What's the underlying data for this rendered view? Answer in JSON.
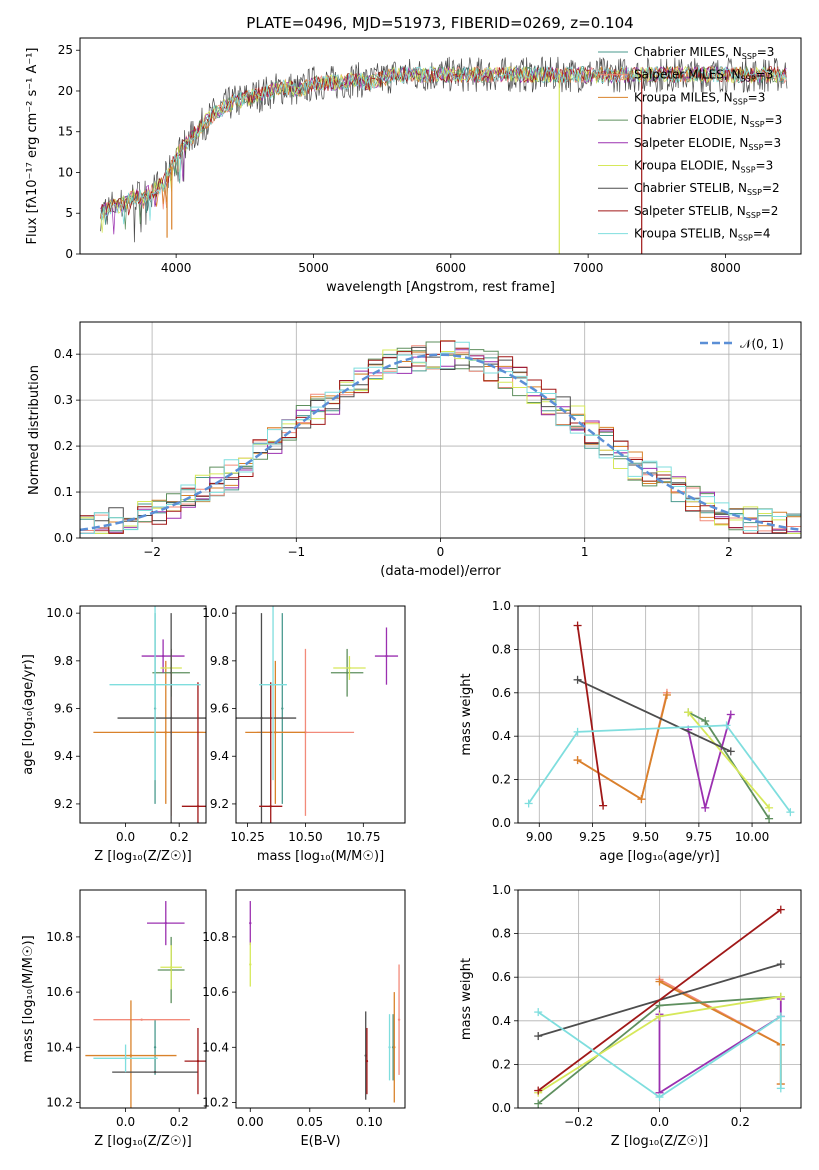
{
  "figure": {
    "title": "PLATE=0496, MJD=51973, FIBERID=0269, z=0.104"
  },
  "palette": {
    "Chabrier MILES": "#4a9a8e",
    "Salpeter MILES": "#f28a7a",
    "Kroupa MILES": "#d9822b",
    "Chabrier ELODIE": "#5e8f5e",
    "Salpeter ELODIE": "#9b30b0",
    "Kroupa ELODIE": "#d6e85a",
    "Chabrier STELIB": "#4d4d4d",
    "Salpeter STELIB": "#a01818",
    "Kroupa STELIB": "#7fdede"
  },
  "chart_data": [
    {
      "id": "spectrum",
      "type": "line",
      "title": "PLATE=0496, MJD=51973, FIBERID=0269, z=0.104",
      "xlabel": "wavelength [Angstrom, rest frame]",
      "ylabel": "Flux [fλ10⁻¹⁷ erg cm⁻² s⁻¹ A⁻¹]",
      "xlim": [
        3300,
        8550
      ],
      "ylim": [
        0,
        26.5
      ],
      "xticks": [
        "4000",
        "5000",
        "6000",
        "7000",
        "8000"
      ],
      "yticks": [
        "0",
        "5",
        "10",
        "15",
        "20",
        "25"
      ],
      "grid": false,
      "legend_position": "upper-right",
      "legend": [
        {
          "name": "Chabrier MILES",
          "sub": "SSP",
          "n": "3"
        },
        {
          "name": "Salpeter MILES",
          "sub": "SSP",
          "n": "3"
        },
        {
          "name": "Kroupa MILES",
          "sub": "SSP",
          "n": "3"
        },
        {
          "name": "Chabrier ELODIE",
          "sub": "SSP",
          "n": "3"
        },
        {
          "name": "Salpeter ELODIE",
          "sub": "SSP",
          "n": "3"
        },
        {
          "name": "Kroupa ELODIE",
          "sub": "SSP",
          "n": "3"
        },
        {
          "name": "Chabrier STELIB",
          "sub": "SSP",
          "n": "2"
        },
        {
          "name": "Salpeter STELIB",
          "sub": "SSP",
          "n": "2"
        },
        {
          "name": "Kroupa STELIB",
          "sub": "SSP",
          "n": "4"
        }
      ],
      "envelope": {
        "wavelength": [
          3450,
          3500,
          3550,
          3600,
          3650,
          3700,
          3750,
          3800,
          3850,
          3900,
          3950,
          4000,
          4050,
          4100,
          4150,
          4200,
          4300,
          4400,
          4500,
          4600,
          4700,
          4800,
          4900,
          5000,
          5100,
          5200,
          5300,
          5400,
          5500,
          5600,
          5700,
          5800,
          5900,
          6000,
          6100,
          6200,
          6300,
          6400,
          6500,
          6600,
          6700,
          6800,
          6900,
          7000,
          7100,
          7200,
          7300,
          7400,
          7500,
          7600,
          7700,
          7800,
          7900,
          8000,
          8100,
          8200,
          8300,
          8400,
          8500
        ],
        "flux": [
          5,
          5.5,
          6,
          6,
          6.5,
          7,
          7,
          7.5,
          8,
          8.5,
          10,
          12,
          13,
          14,
          15,
          16,
          17.5,
          18.5,
          19,
          19.5,
          20,
          20.5,
          20,
          21,
          21,
          21,
          21.5,
          21,
          21.5,
          22,
          22,
          22,
          22,
          22,
          22,
          22,
          22,
          22,
          22,
          22,
          22,
          22,
          22,
          22,
          22,
          22,
          22,
          22,
          22,
          22,
          22,
          22,
          22,
          22,
          22,
          22,
          22,
          22,
          22
        ]
      },
      "dips": [
        {
          "x": 3934,
          "to": 2
        },
        {
          "x": 3968,
          "to": 3
        },
        {
          "x": 6790,
          "to": 0
        },
        {
          "x": 7390,
          "to": 0
        }
      ]
    },
    {
      "id": "residual-histogram",
      "type": "histogram",
      "xlabel": "(data-model)/error",
      "ylabel": "Normed distribution",
      "xlim": [
        -2.5,
        2.5
      ],
      "ylim": [
        0,
        0.47
      ],
      "xticks": [
        "−2",
        "−1",
        "0",
        "1",
        "2"
      ],
      "yticks": [
        "0.0",
        "0.1",
        "0.2",
        "0.3",
        "0.4"
      ],
      "grid": true,
      "legend_position": "upper-right",
      "reference_curve": {
        "label": "𝒩(0, 1)",
        "mean": 0,
        "sigma": 1,
        "color": "#5b8fd6"
      },
      "bin_width": 0.1
    },
    {
      "id": "age-vs-Z",
      "type": "errorbar",
      "xlabel": "Z [log₁₀(Z/Z☉)]",
      "ylabel": "age  [log₁₀(age/yr)]",
      "xlim": [
        -0.17,
        0.3
      ],
      "ylim": [
        9.12,
        10.03
      ],
      "xticks": [
        "0.0",
        "0.2"
      ],
      "yticks": [
        "9.2",
        "9.4",
        "9.6",
        "9.8",
        "10.0"
      ],
      "points": [
        {
          "series": "Chabrier MILES",
          "x": 0.11,
          "y": 9.6,
          "xerr": 0,
          "yerr": 0.4
        },
        {
          "series": "Salpeter MILES",
          "x": 0.17,
          "y": 9.5,
          "xerr": 0.12,
          "yerr": 0.35
        },
        {
          "series": "Kroupa MILES",
          "x": 0.15,
          "y": 9.5,
          "xerr": 0.27,
          "yerr": 0.3
        },
        {
          "series": "Chabrier ELODIE",
          "x": 0.17,
          "y": 9.75,
          "xerr": 0.07,
          "yerr": 0.1
        },
        {
          "series": "Salpeter ELODIE",
          "x": 0.14,
          "y": 9.82,
          "xerr": 0.08,
          "yerr": 0.07
        },
        {
          "series": "Kroupa ELODIE",
          "x": 0.17,
          "y": 9.77,
          "xerr": 0.04,
          "yerr": 0.05
        },
        {
          "series": "Chabrier STELIB",
          "x": 0.17,
          "y": 9.56,
          "xerr": 0.2,
          "yerr": 0.44
        },
        {
          "series": "Salpeter STELIB",
          "x": 0.27,
          "y": 9.19,
          "xerr": 0.06,
          "yerr": 0.52
        },
        {
          "series": "Kroupa STELIB",
          "x": 0.11,
          "y": 9.7,
          "xerr": 0.17,
          "yerr": 0.4
        }
      ]
    },
    {
      "id": "age-vs-mass",
      "type": "errorbar",
      "xlabel": "mass [log₁₀(M/M☉)]",
      "ylabel": "",
      "xlim": [
        10.2,
        10.93
      ],
      "ylim": [
        9.12,
        10.03
      ],
      "xticks": [
        "10.25",
        "10.50",
        "10.75"
      ],
      "yticks": [
        "9.2",
        "9.4",
        "9.6",
        "9.8",
        "10.0"
      ],
      "points": [
        {
          "series": "Chabrier MILES",
          "x": 10.4,
          "y": 9.6,
          "xerr": 0,
          "yerr": 0.4
        },
        {
          "series": "Salpeter MILES",
          "x": 10.5,
          "y": 9.5,
          "xerr": 0.21,
          "yerr": 0.35
        },
        {
          "series": "Kroupa MILES",
          "x": 10.37,
          "y": 9.5,
          "xerr": 0.13,
          "yerr": 0.3
        },
        {
          "series": "Chabrier ELODIE",
          "x": 10.68,
          "y": 9.75,
          "xerr": 0.07,
          "yerr": 0.1
        },
        {
          "series": "Salpeter ELODIE",
          "x": 10.85,
          "y": 9.82,
          "xerr": 0.05,
          "yerr": 0.12
        },
        {
          "series": "Kroupa ELODIE",
          "x": 10.69,
          "y": 9.77,
          "xerr": 0.07,
          "yerr": 0.05
        },
        {
          "series": "Chabrier STELIB",
          "x": 10.31,
          "y": 9.56,
          "xerr": 0.15,
          "yerr": 0.44
        },
        {
          "series": "Salpeter STELIB",
          "x": 10.35,
          "y": 9.19,
          "xerr": 0.05,
          "yerr": 0.52
        },
        {
          "series": "Kroupa STELIB",
          "x": 10.36,
          "y": 9.7,
          "xerr": 0.06,
          "yerr": 0.4
        }
      ]
    },
    {
      "id": "weight-vs-age",
      "type": "line",
      "xlabel": "age  [log₁₀(age/yr)]",
      "ylabel": "mass weight",
      "xlim": [
        8.9,
        10.23
      ],
      "ylim": [
        0,
        1
      ],
      "xticks": [
        "9.00",
        "9.25",
        "9.50",
        "9.75",
        "10.00"
      ],
      "yticks": [
        "0.0",
        "0.2",
        "0.4",
        "0.6",
        "0.8",
        "1.0"
      ],
      "grid": true,
      "series": [
        {
          "name": "Salpeter MILES",
          "x": [
            9.18,
            9.48,
            9.6
          ],
          "y": [
            0.29,
            0.11,
            0.6
          ]
        },
        {
          "name": "Kroupa MILES",
          "x": [
            9.18,
            9.48,
            9.6
          ],
          "y": [
            0.29,
            0.11,
            0.59
          ]
        },
        {
          "name": "Chabrier ELODIE",
          "x": [
            9.7,
            9.78,
            10.08
          ],
          "y": [
            0.51,
            0.47,
            0.02
          ]
        },
        {
          "name": "Salpeter ELODIE",
          "x": [
            9.7,
            9.78,
            9.9
          ],
          "y": [
            0.43,
            0.07,
            0.5
          ]
        },
        {
          "name": "Kroupa ELODIE",
          "x": [
            9.7,
            10.08
          ],
          "y": [
            0.51,
            0.07
          ]
        },
        {
          "name": "Chabrier STELIB",
          "x": [
            9.18,
            9.9
          ],
          "y": [
            0.66,
            0.33
          ]
        },
        {
          "name": "Salpeter STELIB",
          "x": [
            9.18,
            9.3
          ],
          "y": [
            0.91,
            0.08
          ]
        },
        {
          "name": "Kroupa STELIB",
          "x": [
            8.95,
            9.18,
            9.88,
            10.18
          ],
          "y": [
            0.09,
            0.42,
            0.45,
            0.05
          ]
        }
      ]
    },
    {
      "id": "mass-vs-Z",
      "type": "errorbar",
      "xlabel": "Z [log₁₀(Z/Z☉)]",
      "ylabel": "mass [log₁₀(M/M☉)]",
      "xlim": [
        -0.17,
        0.3
      ],
      "ylim": [
        10.18,
        10.97
      ],
      "xticks": [
        "0.0",
        "0.2"
      ],
      "yticks": [
        "10.2",
        "10.4",
        "10.6",
        "10.8"
      ],
      "points": [
        {
          "series": "Chabrier MILES",
          "x": 0.11,
          "y": 10.4,
          "xerr": 0,
          "yerr": 0.1
        },
        {
          "series": "Salpeter MILES",
          "x": 0.06,
          "y": 10.5,
          "xerr": 0.18,
          "yerr": 0
        },
        {
          "series": "Kroupa MILES",
          "x": 0.02,
          "y": 10.37,
          "xerr": 0.17,
          "yerr": 0.2
        },
        {
          "series": "Chabrier ELODIE",
          "x": 0.17,
          "y": 10.68,
          "xerr": 0.05,
          "yerr": 0.12
        },
        {
          "series": "Salpeter ELODIE",
          "x": 0.15,
          "y": 10.85,
          "xerr": 0.07,
          "yerr": 0.08
        },
        {
          "series": "Kroupa ELODIE",
          "x": 0.17,
          "y": 10.69,
          "xerr": 0.04,
          "yerr": 0.08
        },
        {
          "series": "Chabrier STELIB",
          "x": 0.11,
          "y": 10.31,
          "xerr": 0.16,
          "yerr": 0
        },
        {
          "series": "Salpeter STELIB",
          "x": 0.27,
          "y": 10.35,
          "xerr": 0.05,
          "yerr": 0.12
        },
        {
          "series": "Kroupa STELIB",
          "x": 0.0,
          "y": 10.36,
          "xerr": 0.12,
          "yerr": 0.05
        }
      ]
    },
    {
      "id": "mass-vs-EBV",
      "type": "errorbar",
      "xlabel": "E(B-V)",
      "ylabel": "",
      "xlim": [
        -0.012,
        0.13
      ],
      "ylim": [
        10.18,
        10.97
      ],
      "xticks": [
        "0.00",
        "0.05",
        "0.10"
      ],
      "yticks": [
        "10.2",
        "10.4",
        "10.6",
        "10.8"
      ],
      "points": [
        {
          "series": "Salpeter ELODIE",
          "x": 0.0,
          "y": 10.85,
          "xerr": 0,
          "yerr": 0.08
        },
        {
          "series": "Kroupa ELODIE",
          "x": 0.0,
          "y": 10.7,
          "xerr": 0,
          "yerr": 0.08
        },
        {
          "series": "Chabrier STELIB",
          "x": 0.097,
          "y": 10.37,
          "xerr": 0,
          "yerr": 0.16
        },
        {
          "series": "Salpeter STELIB",
          "x": 0.098,
          "y": 10.35,
          "xerr": 0,
          "yerr": 0.12
        },
        {
          "series": "Chabrier MILES",
          "x": 0.12,
          "y": 10.4,
          "xerr": 0,
          "yerr": 0.12
        },
        {
          "series": "Kroupa MILES",
          "x": 0.121,
          "y": 10.4,
          "xerr": 0,
          "yerr": 0.2
        },
        {
          "series": "Salpeter MILES",
          "x": 0.125,
          "y": 10.5,
          "xerr": 0,
          "yerr": 0.2
        },
        {
          "series": "Kroupa STELIB",
          "x": 0.117,
          "y": 10.4,
          "xerr": 0,
          "yerr": 0.12
        }
      ]
    },
    {
      "id": "weight-vs-Z",
      "type": "line",
      "xlabel": "Z [log₁₀(Z/Z☉)]",
      "ylabel": "mass weight",
      "xlim": [
        -0.35,
        0.35
      ],
      "ylim": [
        0,
        1
      ],
      "xticks": [
        "−0.2",
        "0.0",
        "0.2"
      ],
      "yticks": [
        "0.0",
        "0.2",
        "0.4",
        "0.6",
        "0.8",
        "1.0"
      ],
      "grid": true,
      "series": [
        {
          "name": "Salpeter MILES",
          "x": [
            0.0,
            0.3,
            0.3
          ],
          "y": [
            0.59,
            0.29,
            0.11
          ]
        },
        {
          "name": "Kroupa MILES",
          "x": [
            0.0,
            0.3,
            0.3
          ],
          "y": [
            0.58,
            0.29,
            0.11
          ]
        },
        {
          "name": "Chabrier ELODIE",
          "x": [
            -0.3,
            0.0,
            0.3
          ],
          "y": [
            0.02,
            0.47,
            0.51
          ]
        },
        {
          "name": "Salpeter ELODIE",
          "x": [
            0.0,
            0.0,
            0.3,
            0.3
          ],
          "y": [
            0.43,
            0.07,
            0.42,
            0.5
          ]
        },
        {
          "name": "Kroupa ELODIE",
          "x": [
            -0.3,
            0.0,
            0.3
          ],
          "y": [
            0.07,
            0.42,
            0.51
          ]
        },
        {
          "name": "Chabrier STELIB",
          "x": [
            -0.3,
            0.3
          ],
          "y": [
            0.33,
            0.66
          ]
        },
        {
          "name": "Salpeter STELIB",
          "x": [
            -0.3,
            0.3
          ],
          "y": [
            0.08,
            0.91
          ]
        },
        {
          "name": "Kroupa STELIB",
          "x": [
            -0.3,
            0.0,
            0.3,
            0.3
          ],
          "y": [
            0.44,
            0.05,
            0.42,
            0.09
          ]
        }
      ]
    }
  ]
}
